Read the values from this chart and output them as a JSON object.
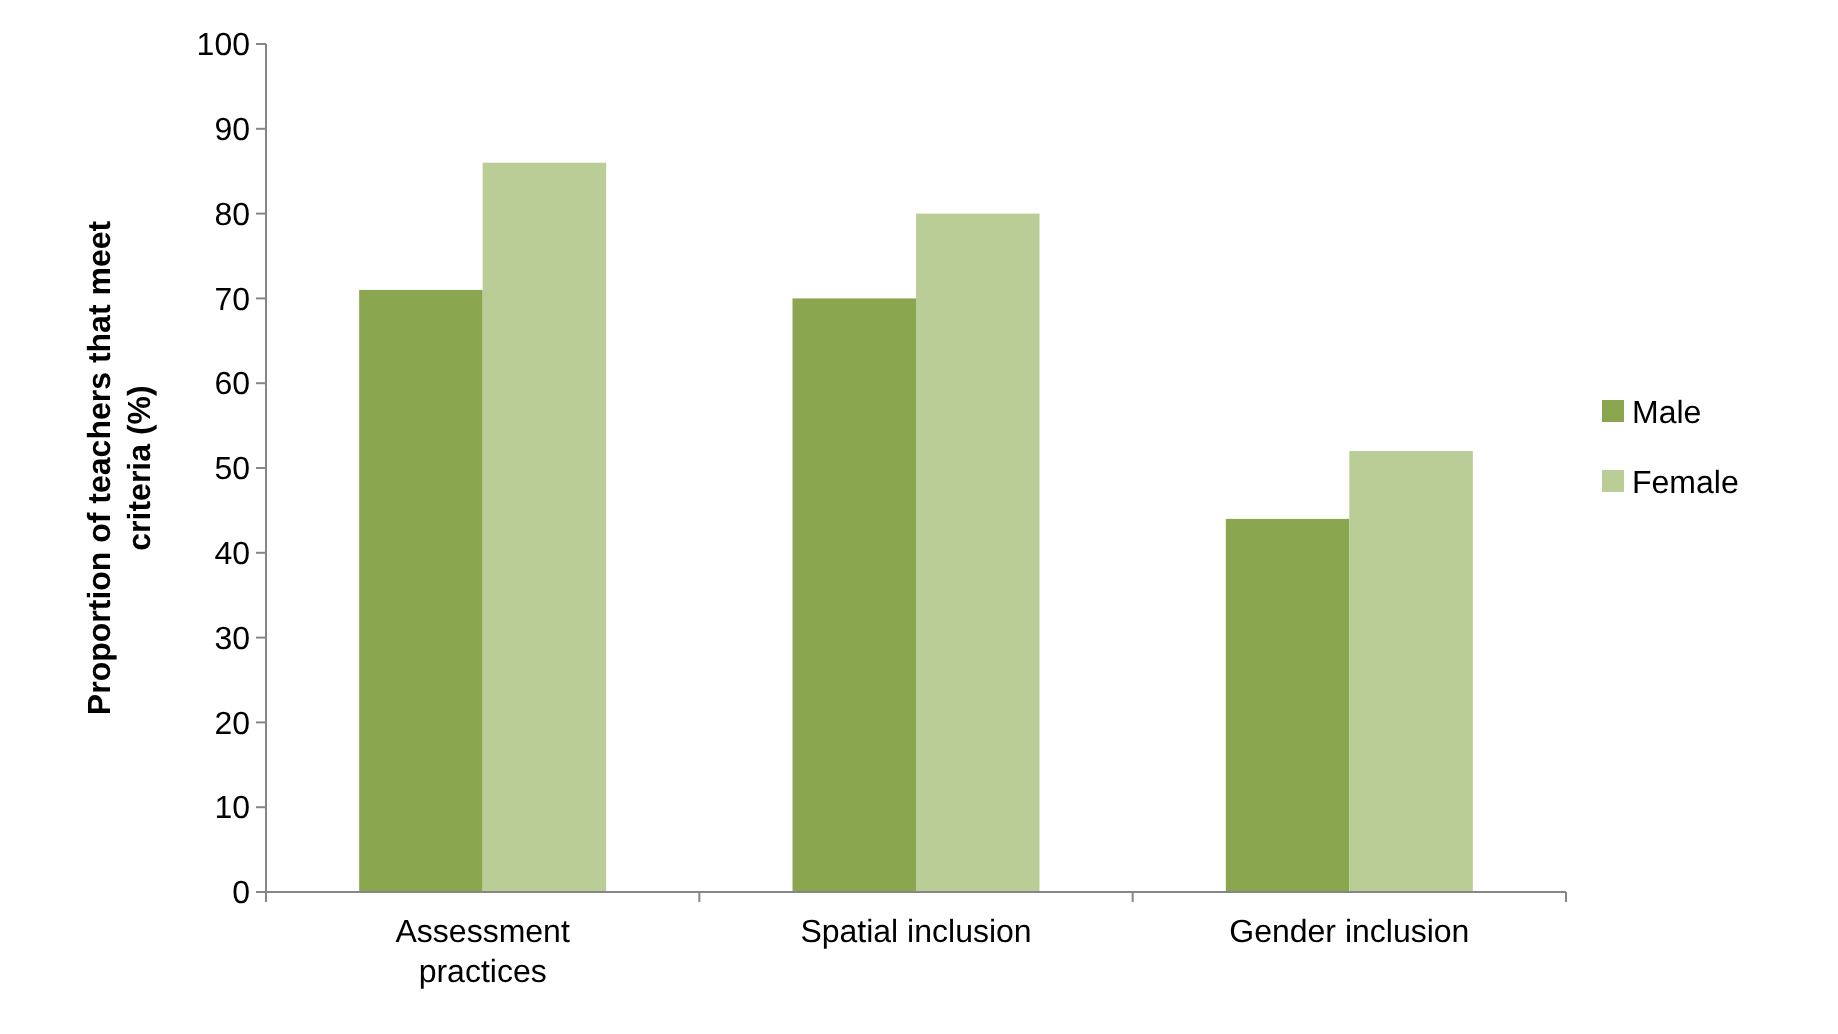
{
  "chart_data": {
    "type": "bar",
    "ylabel": "Proportion of teachers that meet criteria (%)",
    "categories": [
      "Assessment practices",
      "Spatial inclusion",
      "Gender inclusion"
    ],
    "series": [
      {
        "name": "Male",
        "color": "#8aa64f",
        "values": [
          71,
          70,
          44
        ]
      },
      {
        "name": "Female",
        "color": "#bacd96",
        "values": [
          86,
          80,
          52
        ]
      }
    ],
    "ylim": [
      0,
      100
    ],
    "yticks": [
      0,
      10,
      20,
      30,
      40,
      50,
      60,
      70,
      80,
      90,
      100
    ],
    "grid": false,
    "legend": "right"
  }
}
